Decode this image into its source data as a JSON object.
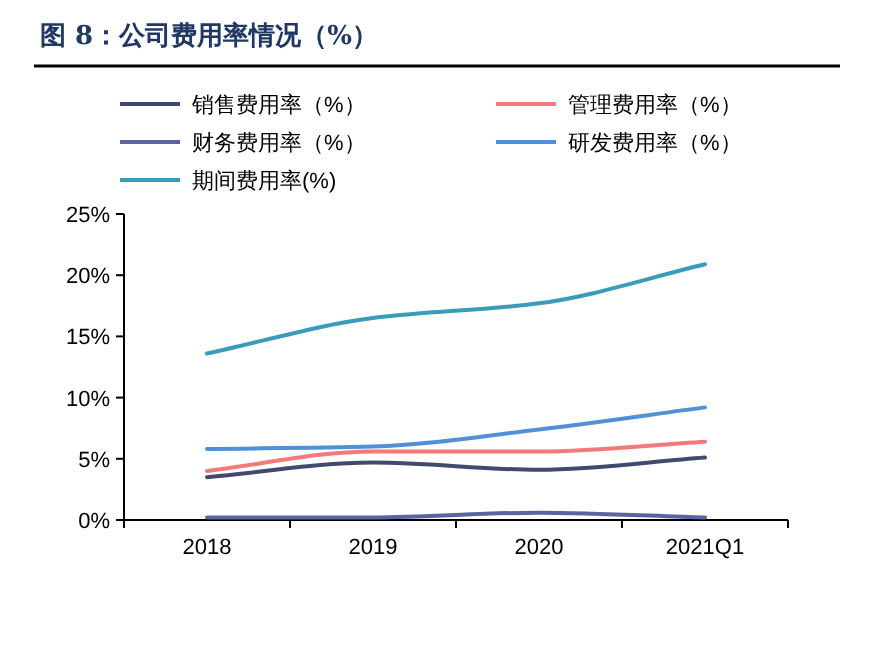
{
  "chart_data": {
    "type": "line",
    "title": "图 8：公司费用率情况（%）",
    "categories": [
      "2018",
      "2019",
      "2020",
      "2021Q1"
    ],
    "series": [
      {
        "name": "销售费用率（%）",
        "color": "#404a6e",
        "values": [
          3.5,
          4.7,
          4.1,
          5.1
        ]
      },
      {
        "name": "管理费用率（%）",
        "color": "#f47a7a",
        "values": [
          4.0,
          5.6,
          5.6,
          6.4
        ]
      },
      {
        "name": "财务费用率（%）",
        "color": "#5965a0",
        "values": [
          0.2,
          0.2,
          0.6,
          0.2
        ]
      },
      {
        "name": "研发费用率（%）",
        "color": "#4f90d6",
        "values": [
          5.8,
          6.0,
          7.4,
          9.2
        ]
      },
      {
        "name": "期间费用率(%)",
        "color": "#3a9bbb",
        "values": [
          13.6,
          16.5,
          17.7,
          20.9
        ]
      }
    ],
    "ylim": [
      0,
      25
    ],
    "yticks": [
      {
        "value": 0,
        "label": "0%"
      },
      {
        "value": 5,
        "label": "5%"
      },
      {
        "value": 10,
        "label": "10%"
      },
      {
        "value": 15,
        "label": "15%"
      },
      {
        "value": 20,
        "label": "20%"
      },
      {
        "value": 25,
        "label": "25%"
      }
    ],
    "grid": false,
    "legend": "top",
    "marker": "none",
    "line_style": "solid"
  }
}
